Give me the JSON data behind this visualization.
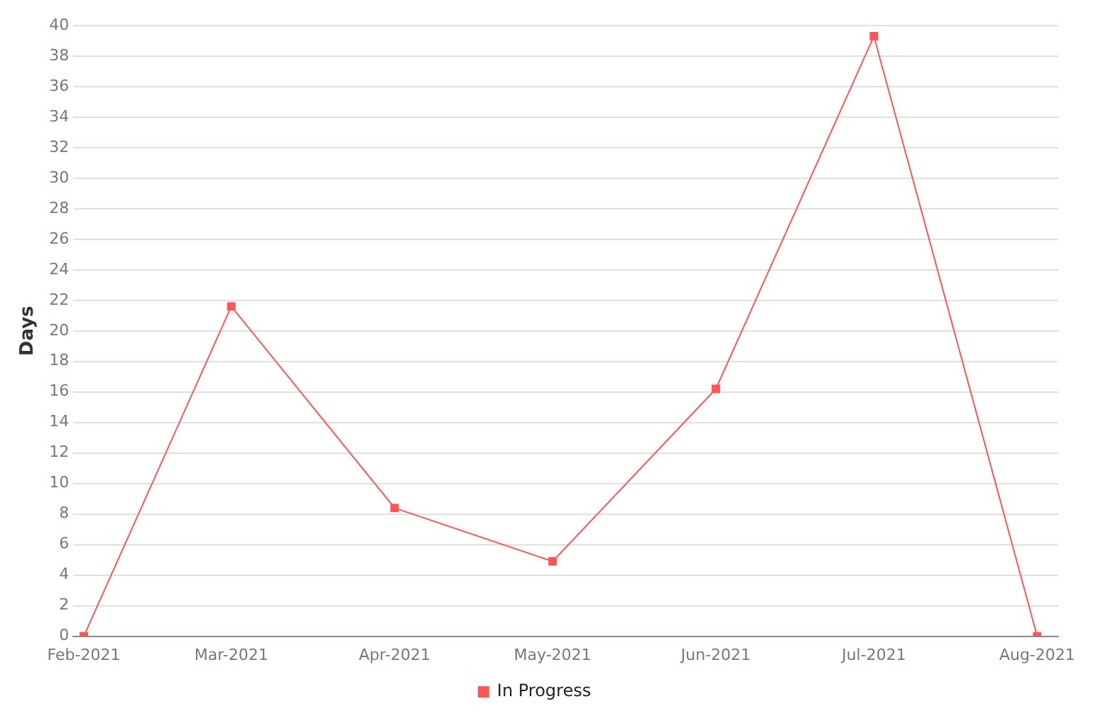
{
  "chart_data": {
    "type": "line",
    "ylabel": "Days",
    "x": [
      "2021-02",
      "2021-03",
      "2021-04",
      "2021-05",
      "2021-06",
      "2021-07",
      "2021-08"
    ],
    "series": [
      {
        "name": "In Progress",
        "color": "#ff5555",
        "values": [
          0,
          21.6,
          8.4,
          4.9,
          16.2,
          39.3,
          0
        ]
      }
    ],
    "xlim": [
      "2021-01-30",
      "2021-08-05"
    ],
    "xticks": [
      {
        "value": "2021-02",
        "label": "Feb-2021"
      },
      {
        "value": "2021-03",
        "label": "Mar-2021"
      },
      {
        "value": "2021-04",
        "label": "Apr-2021"
      },
      {
        "value": "2021-05",
        "label": "May-2021"
      },
      {
        "value": "2021-06",
        "label": "Jun-2021"
      },
      {
        "value": "2021-07",
        "label": "Jul-2021"
      },
      {
        "value": "2021-08",
        "label": "Aug-2021"
      }
    ],
    "ylim": [
      0,
      40
    ],
    "yticks": [
      0,
      2,
      4,
      6,
      8,
      10,
      12,
      14,
      16,
      18,
      20,
      22,
      24,
      26,
      28,
      30,
      32,
      34,
      36,
      38,
      40
    ],
    "grid": "y",
    "legend": "bottom",
    "marker": "square",
    "line_style": "solid"
  }
}
